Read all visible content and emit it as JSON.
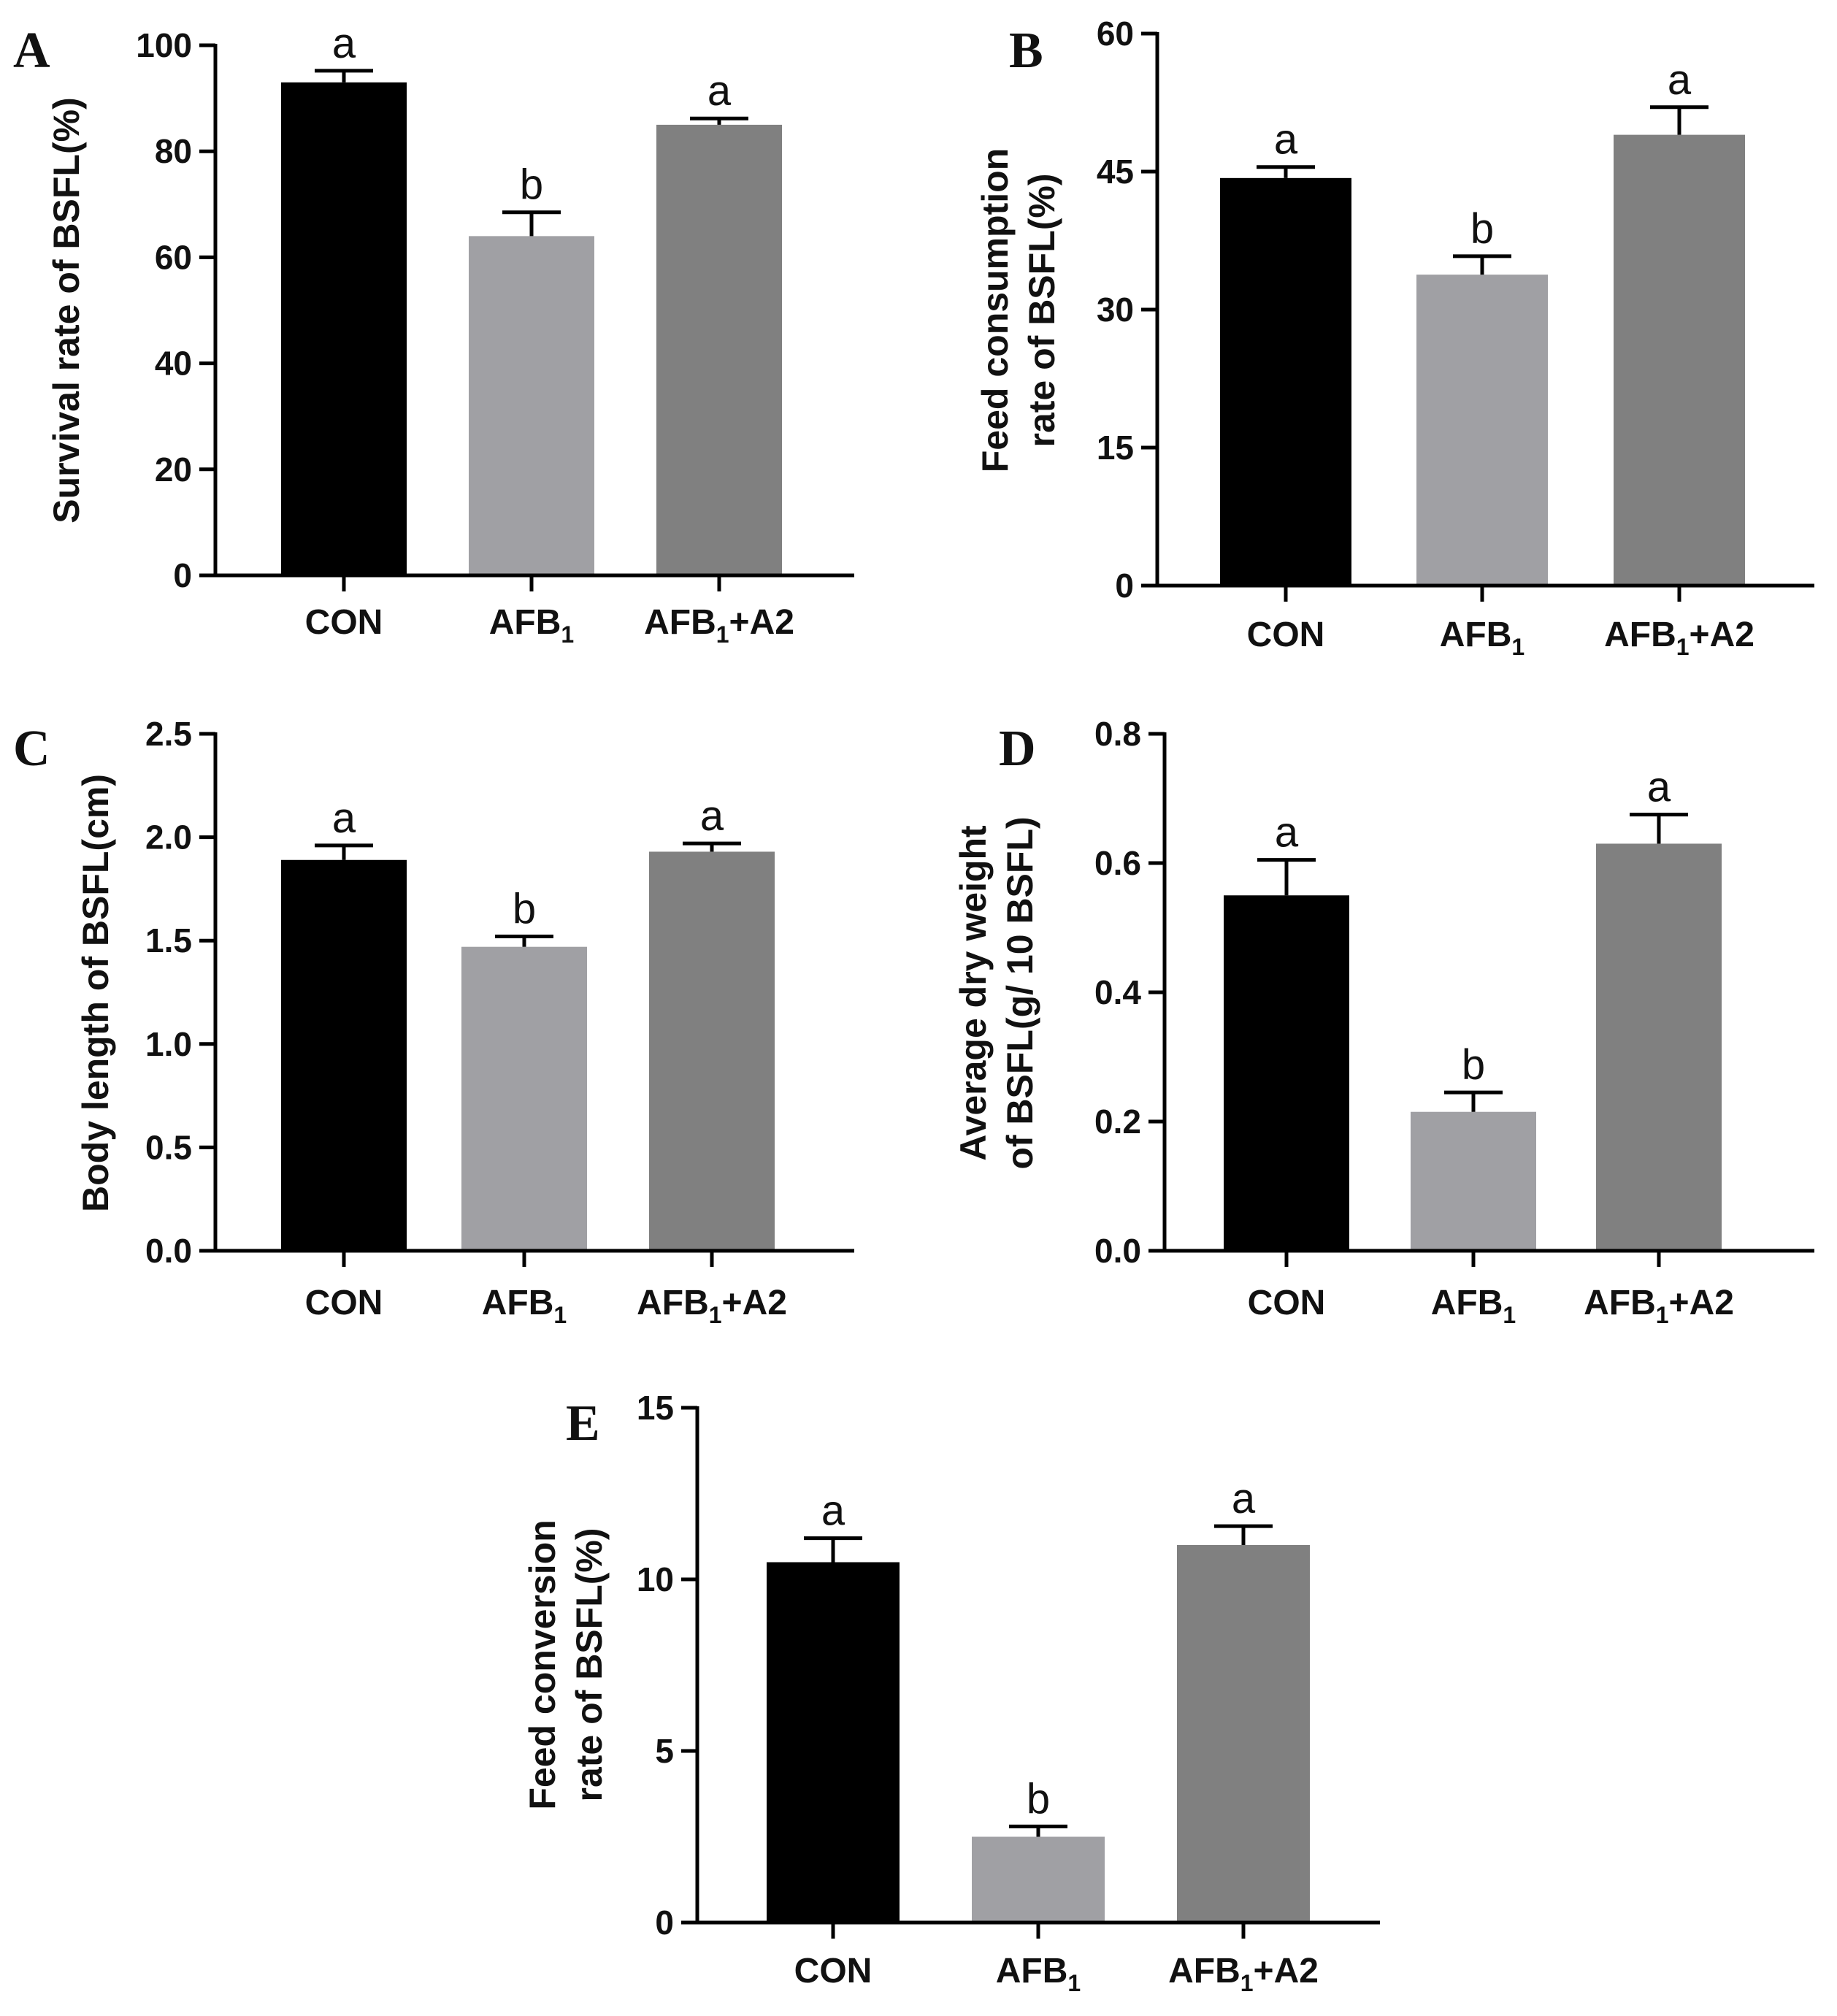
{
  "figure": {
    "category_subscript": "1"
  },
  "colors": {
    "bars": [
      "#000000",
      "#a0a0a4",
      "#808080"
    ],
    "axis": "#000000"
  },
  "chart_data": [
    {
      "type": "bar",
      "panel": "A",
      "categories": [
        "CON",
        "AFB1",
        "AFB1+A2"
      ],
      "category_display": [
        [
          "CON"
        ],
        [
          "AFB",
          "1"
        ],
        [
          "AFB",
          "1",
          "+A2"
        ]
      ],
      "values": [
        93,
        64,
        85
      ],
      "errors": [
        2.2,
        4.5,
        1.2
      ],
      "significance": [
        "a",
        "b",
        "a"
      ],
      "title": "",
      "xlabel": "",
      "ylabel": [
        "Survival rate of BSFL(%)"
      ],
      "ylim": [
        0,
        100
      ],
      "yticks": [
        0,
        20,
        40,
        60,
        80,
        100
      ],
      "ytick_labels": [
        "0",
        "20",
        "40",
        "60",
        "80",
        "100"
      ],
      "grid": false
    },
    {
      "type": "bar",
      "panel": "B",
      "categories": [
        "CON",
        "AFB1",
        "AFB1+A2"
      ],
      "category_display": [
        [
          "CON"
        ],
        [
          "AFB",
          "1"
        ],
        [
          "AFB",
          "1",
          "+A2"
        ]
      ],
      "values": [
        44.3,
        33.8,
        49
      ],
      "errors": [
        1.2,
        2.0,
        3.0
      ],
      "significance": [
        "a",
        "b",
        "a"
      ],
      "title": "",
      "xlabel": "",
      "ylabel": [
        "Feed consumption",
        "rate of BSFL(%)"
      ],
      "ylim": [
        0,
        60
      ],
      "yticks": [
        0,
        15,
        30,
        45,
        60
      ],
      "ytick_labels": [
        "0",
        "15",
        "30",
        "45",
        "60"
      ],
      "grid": false
    },
    {
      "type": "bar",
      "panel": "C",
      "categories": [
        "CON",
        "AFB1",
        "AFB1+A2"
      ],
      "category_display": [
        [
          "CON"
        ],
        [
          "AFB",
          "1"
        ],
        [
          "AFB",
          "1",
          "+A2"
        ]
      ],
      "values": [
        1.89,
        1.47,
        1.93
      ],
      "errors": [
        0.07,
        0.05,
        0.04
      ],
      "significance": [
        "a",
        "b",
        "a"
      ],
      "title": "",
      "xlabel": "",
      "ylabel": [
        "Body length of BSFL(cm)"
      ],
      "ylim": [
        0,
        2.5
      ],
      "yticks": [
        0,
        0.5,
        1.0,
        1.5,
        2.0,
        2.5
      ],
      "ytick_labels": [
        "0.0",
        "0.5",
        "1.0",
        "1.5",
        "2.0",
        "2.5"
      ],
      "grid": false
    },
    {
      "type": "bar",
      "panel": "D",
      "categories": [
        "CON",
        "AFB1",
        "AFB1+A2"
      ],
      "category_display": [
        [
          "CON"
        ],
        [
          "AFB",
          "1"
        ],
        [
          "AFB",
          "1",
          "+A2"
        ]
      ],
      "values": [
        0.55,
        0.215,
        0.63
      ],
      "errors": [
        0.055,
        0.03,
        0.045
      ],
      "significance": [
        "a",
        "b",
        "a"
      ],
      "title": "",
      "xlabel": "",
      "ylabel": [
        "Average dry weight",
        "of BSFL(g/ 10 BSFL)"
      ],
      "ylim": [
        0,
        0.8
      ],
      "yticks": [
        0,
        0.2,
        0.4,
        0.6,
        0.8
      ],
      "ytick_labels": [
        "0.0",
        "0.2",
        "0.4",
        "0.6",
        "0.8"
      ],
      "grid": false
    },
    {
      "type": "bar",
      "panel": "E",
      "categories": [
        "CON",
        "AFB1",
        "AFB1+A2"
      ],
      "category_display": [
        [
          "CON"
        ],
        [
          "AFB",
          "1"
        ],
        [
          "AFB",
          "1",
          "+A2"
        ]
      ],
      "values": [
        10.5,
        2.5,
        11
      ],
      "errors": [
        0.7,
        0.3,
        0.55
      ],
      "significance": [
        "a",
        "b",
        "a"
      ],
      "title": "",
      "xlabel": "",
      "ylabel": [
        "Feed conversion",
        "rate of BSFL(%)"
      ],
      "ylim": [
        0,
        15
      ],
      "yticks": [
        0,
        5,
        10,
        15
      ],
      "ytick_labels": [
        "0",
        "5",
        "10",
        "15"
      ],
      "grid": false
    }
  ]
}
